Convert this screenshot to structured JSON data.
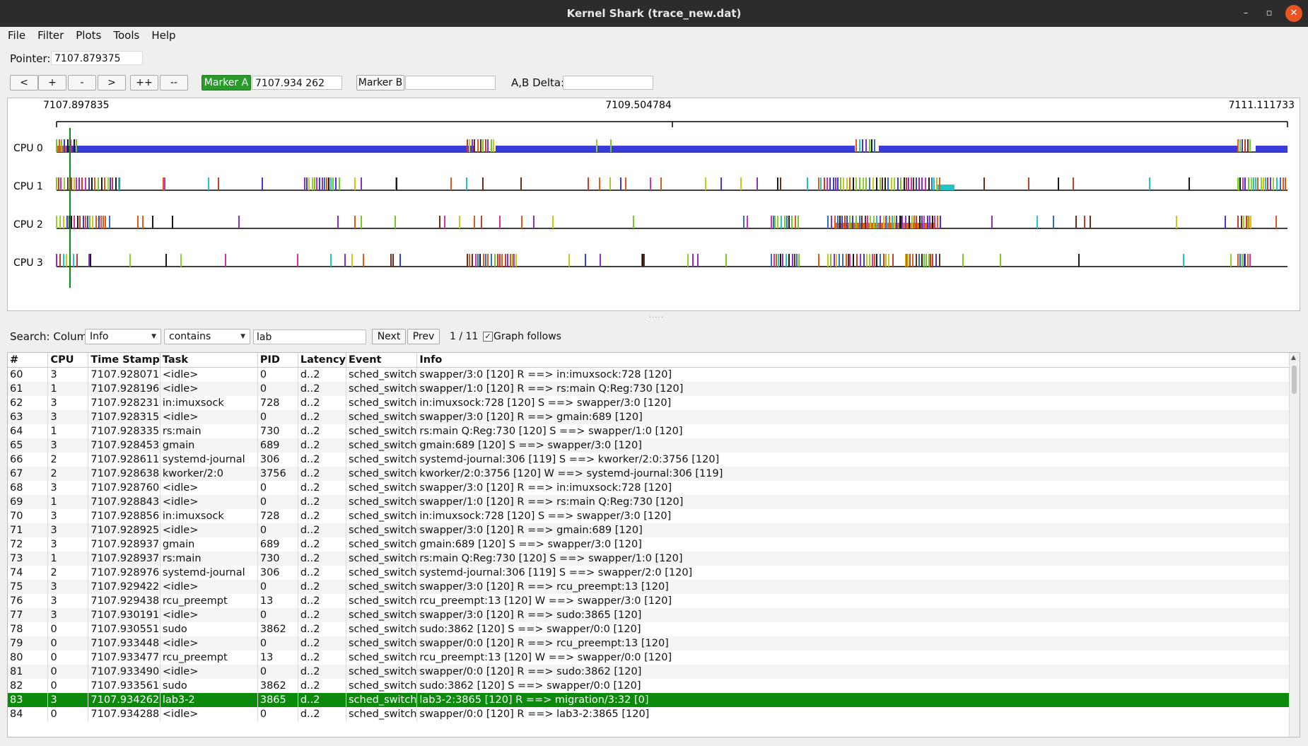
{
  "window": {
    "title": "Kernel Shark (trace_new.dat)",
    "minimize": "–",
    "maximize": "▫",
    "close": "✕"
  },
  "menu": [
    "File",
    "Filter",
    "Plots",
    "Tools",
    "Help"
  ],
  "pointer": {
    "label": "Pointer:",
    "value": "7107.879375"
  },
  "nav_buttons": [
    "<",
    "+",
    "-",
    ">",
    "++",
    "--"
  ],
  "marker_a": {
    "label": "Marker A",
    "value": "7107.934 262"
  },
  "marker_b": {
    "label": "Marker B",
    "value": ""
  },
  "delta": {
    "label": "A,B Delta:",
    "value": ""
  },
  "graph": {
    "time_left": "7107.897835",
    "time_mid": "7109.504784",
    "time_right": "7111.111733",
    "cpus": [
      "CPU 0",
      "CPU 1",
      "CPU 2",
      "CPU 3"
    ]
  },
  "search": {
    "label": "Search: Column",
    "column": "Info",
    "condition": "contains",
    "text": "lab",
    "next": "Next",
    "prev": "Prev",
    "count": "1 / 11",
    "graph_follows": "Graph follows",
    "graph_follows_checked": true
  },
  "table": {
    "headers": [
      "#",
      "CPU",
      "Time Stamp",
      "Task",
      "PID",
      "Latency",
      "Event",
      "Info"
    ],
    "selected_index": 23,
    "rows": [
      [
        "60",
        "3",
        "7107.928071",
        "<idle>",
        "0",
        "d..2",
        "sched_switch",
        "swapper/3:0 [120] R ==> in:imuxsock:728 [120]"
      ],
      [
        "61",
        "1",
        "7107.928196",
        "<idle>",
        "0",
        "d..2",
        "sched_switch",
        "swapper/1:0 [120] R ==> rs:main Q:Reg:730 [120]"
      ],
      [
        "62",
        "3",
        "7107.928231",
        "in:imuxsock",
        "728",
        "d..2",
        "sched_switch",
        "in:imuxsock:728 [120] S ==> swapper/3:0 [120]"
      ],
      [
        "63",
        "3",
        "7107.928315",
        "<idle>",
        "0",
        "d..2",
        "sched_switch",
        "swapper/3:0 [120] R ==> gmain:689 [120]"
      ],
      [
        "64",
        "1",
        "7107.928335",
        "rs:main",
        "730",
        "d..2",
        "sched_switch",
        "rs:main Q:Reg:730 [120] S ==> swapper/1:0 [120]"
      ],
      [
        "65",
        "3",
        "7107.928453",
        "gmain",
        "689",
        "d..2",
        "sched_switch",
        "gmain:689 [120] S ==> swapper/3:0 [120]"
      ],
      [
        "66",
        "2",
        "7107.928611",
        "systemd-journal",
        "306",
        "d..2",
        "sched_switch",
        "systemd-journal:306 [119] S ==> kworker/2:0:3756 [120]"
      ],
      [
        "67",
        "2",
        "7107.928638",
        "kworker/2:0",
        "3756",
        "d..2",
        "sched_switch",
        "kworker/2:0:3756 [120] W ==> systemd-journal:306 [119]"
      ],
      [
        "68",
        "3",
        "7107.928760",
        "<idle>",
        "0",
        "d..2",
        "sched_switch",
        "swapper/3:0 [120] R ==> in:imuxsock:728 [120]"
      ],
      [
        "69",
        "1",
        "7107.928843",
        "<idle>",
        "0",
        "d..2",
        "sched_switch",
        "swapper/1:0 [120] R ==> rs:main Q:Reg:730 [120]"
      ],
      [
        "70",
        "3",
        "7107.928856",
        "in:imuxsock",
        "728",
        "d..2",
        "sched_switch",
        "in:imuxsock:728 [120] S ==> swapper/3:0 [120]"
      ],
      [
        "71",
        "3",
        "7107.928925",
        "<idle>",
        "0",
        "d..2",
        "sched_switch",
        "swapper/3:0 [120] R ==> gmain:689 [120]"
      ],
      [
        "72",
        "3",
        "7107.928937",
        "gmain",
        "689",
        "d..2",
        "sched_switch",
        "gmain:689 [120] S ==> swapper/3:0 [120]"
      ],
      [
        "73",
        "1",
        "7107.928937",
        "rs:main",
        "730",
        "d..2",
        "sched_switch",
        "rs:main Q:Reg:730 [120] S ==> swapper/1:0 [120]"
      ],
      [
        "74",
        "2",
        "7107.928976",
        "systemd-journal",
        "306",
        "d..2",
        "sched_switch",
        "systemd-journal:306 [119] S ==> swapper/2:0 [120]"
      ],
      [
        "75",
        "3",
        "7107.929422",
        "<idle>",
        "0",
        "d..2",
        "sched_switch",
        "swapper/3:0 [120] R ==> rcu_preempt:13 [120]"
      ],
      [
        "76",
        "3",
        "7107.929438",
        "rcu_preempt",
        "13",
        "d..2",
        "sched_switch",
        "rcu_preempt:13 [120] W ==> swapper/3:0 [120]"
      ],
      [
        "77",
        "3",
        "7107.930191",
        "<idle>",
        "0",
        "d..2",
        "sched_switch",
        "swapper/3:0 [120] R ==> sudo:3865 [120]"
      ],
      [
        "78",
        "0",
        "7107.930551",
        "sudo",
        "3862",
        "d..2",
        "sched_switch",
        "sudo:3862 [120] S ==> swapper/0:0 [120]"
      ],
      [
        "79",
        "0",
        "7107.933448",
        "<idle>",
        "0",
        "d..2",
        "sched_switch",
        "swapper/0:0 [120] R ==> rcu_preempt:13 [120]"
      ],
      [
        "80",
        "0",
        "7107.933477",
        "rcu_preempt",
        "13",
        "d..2",
        "sched_switch",
        "rcu_preempt:13 [120] W ==> swapper/0:0 [120]"
      ],
      [
        "81",
        "0",
        "7107.933490",
        "<idle>",
        "0",
        "d..2",
        "sched_switch",
        "swapper/0:0 [120] R ==> sudo:3862 [120]"
      ],
      [
        "82",
        "0",
        "7107.933561",
        "sudo",
        "3862",
        "d..2",
        "sched_switch",
        "sudo:3862 [120] S ==> swapper/0:0 [120]"
      ],
      [
        "83",
        "3",
        "7107.934262",
        "lab3-2",
        "3865",
        "d..2",
        "sched_switch",
        "lab3-2:3865 [120] R ==> migration/3:32 [0]"
      ],
      [
        "84",
        "0",
        "7107.934288",
        "<idle>",
        "0",
        "d..2",
        "sched_switch",
        "swapper/0:0 [120] R ==> lab3-2:3865 [120]"
      ]
    ]
  }
}
